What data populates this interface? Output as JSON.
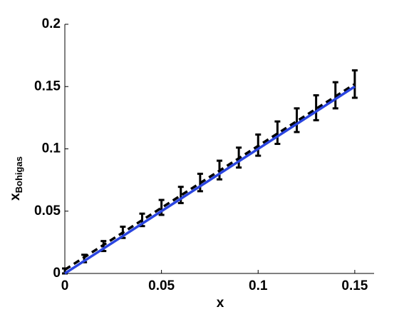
{
  "chart_data": {
    "type": "errorbar-line",
    "xlabel": "x",
    "ylabel": "x",
    "ylabel_subscript": "Bohigas",
    "xlim": [
      0,
      0.16
    ],
    "ylim": [
      0,
      0.2
    ],
    "xticks": [
      0,
      0.05,
      0.1,
      0.15
    ],
    "yticks": [
      0,
      0.05,
      0.1,
      0.15,
      0.2
    ],
    "series": [
      {
        "kind": "errorbar",
        "color": "#000000",
        "x": [
          0,
          0.01,
          0.02,
          0.03,
          0.04,
          0.05,
          0.06,
          0.07,
          0.08,
          0.09,
          0.1,
          0.11,
          0.12,
          0.13,
          0.14,
          0.15
        ],
        "values": [
          0.002,
          0.012,
          0.022,
          0.033,
          0.043,
          0.053,
          0.063,
          0.073,
          0.083,
          0.093,
          0.103,
          0.113,
          0.123,
          0.133,
          0.143,
          0.152
        ],
        "errors": [
          0.002,
          0.003,
          0.004,
          0.0045,
          0.005,
          0.006,
          0.0065,
          0.007,
          0.0075,
          0.008,
          0.0085,
          0.009,
          0.0095,
          0.01,
          0.0105,
          0.011
        ]
      },
      {
        "kind": "line",
        "color": "#000000",
        "dash": true,
        "x": [
          0,
          0.15
        ],
        "values": [
          0.003,
          0.152
        ]
      },
      {
        "kind": "line",
        "color": "#2a45e0",
        "dash": false,
        "x": [
          0,
          0.15
        ],
        "values": [
          0,
          0.15
        ]
      }
    ]
  }
}
